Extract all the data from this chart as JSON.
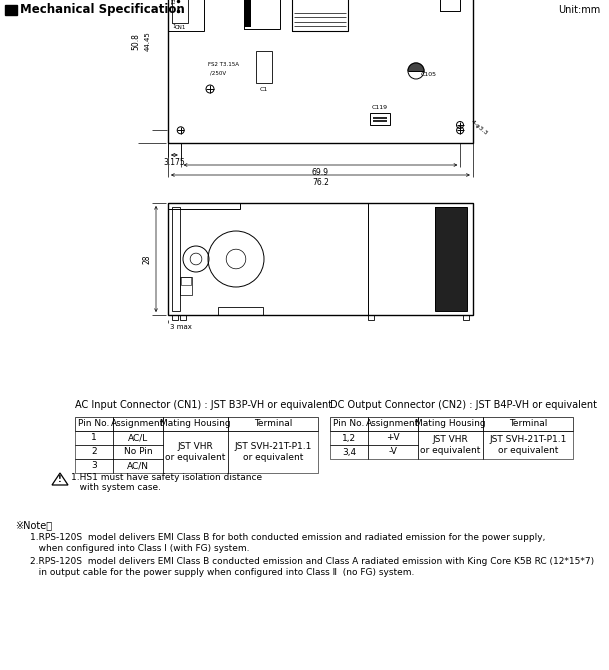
{
  "title": "Mechanical Specification",
  "unit": "Unit:mm",
  "bg_color": "#ffffff",
  "ac_table_title": "AC Input Connector (CN1) : JST B3P-VH or equivalent",
  "dc_table_title": "DC Output Connector (CN2) : JST B4P-VH or equivalent",
  "ac_table_headers": [
    "Pin No.",
    "Assignment",
    "Mating Housing",
    "Terminal"
  ],
  "ac_table_rows_col0": [
    "1",
    "2",
    "3"
  ],
  "ac_table_rows_col1": [
    "AC/L",
    "No Pin",
    "AC/N"
  ],
  "ac_mating": "JST VHR\nor equivalent",
  "ac_terminal": "JST SVH-21T-P1.1\nor equivalent",
  "dc_table_headers": [
    "Pin No.",
    "Assignment",
    "Mating Housing",
    "Terminal"
  ],
  "dc_table_rows_col0": [
    "1,2",
    "3,4"
  ],
  "dc_table_rows_col1": [
    "+V",
    "-V"
  ],
  "dc_mating": "JST VHR\nor equivalent",
  "dc_terminal": "JST SVH-21T-P1.1\nor equivalent",
  "warning_line1": "1.HS1 must have safety isolation distance",
  "warning_line2": "   with system case.",
  "note_title": "※Note：",
  "note1a": "1.RPS-120S  model delivers EMI Class B for both conducted emission and radiated emission for the power supply,",
  "note1b": "   when configured into Class Ⅰ (with FG) system.",
  "note2a": "2.RPS-120S  model delivers EMI Class B conducted emission and Class A radiated emission with King Core K5B RC (12*15*7)",
  "note2b": "   in output cable for the power supply when configured into Class Ⅱ  (no FG) system."
}
